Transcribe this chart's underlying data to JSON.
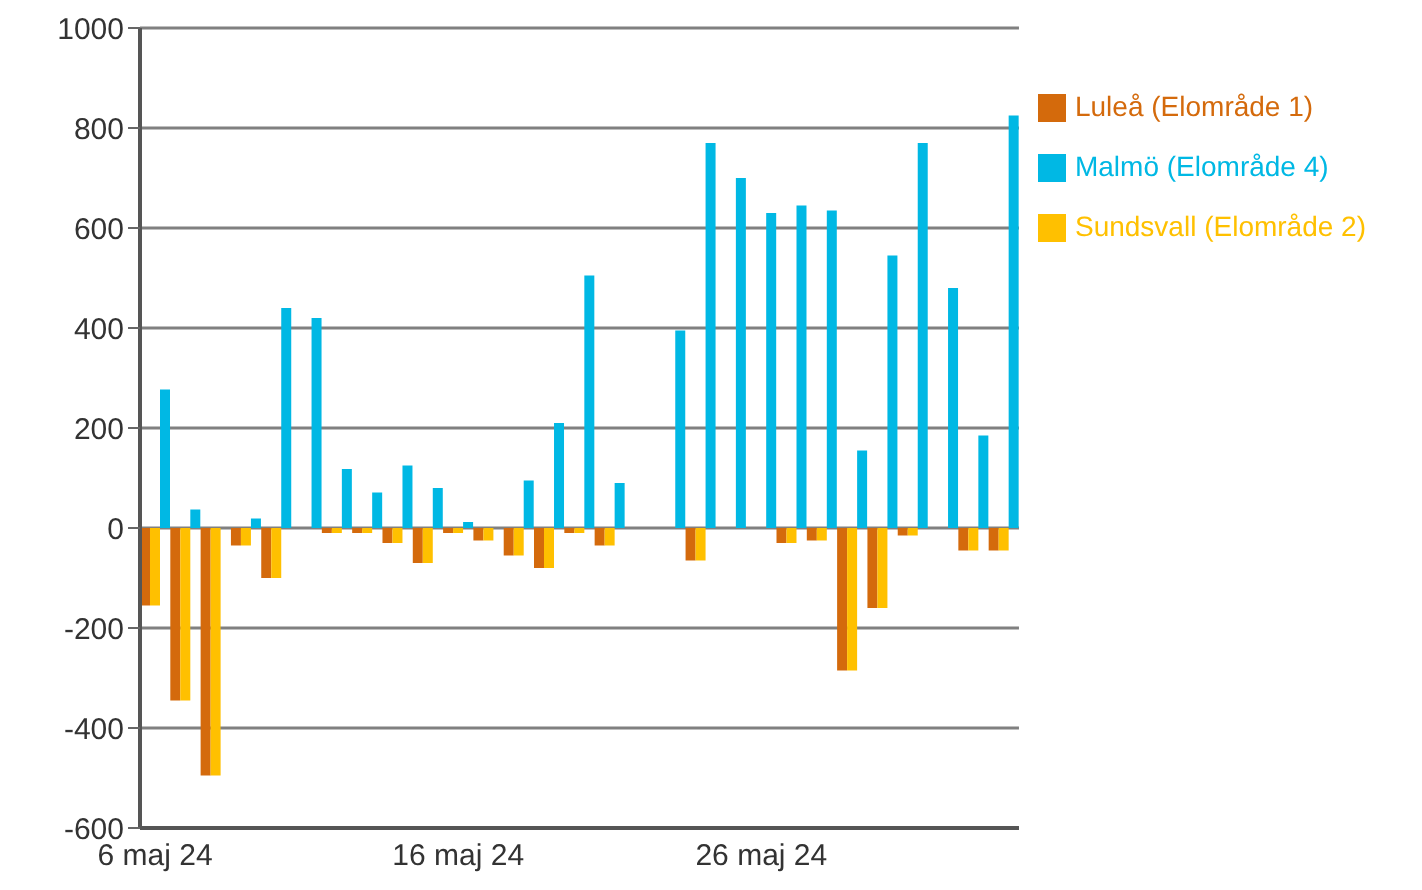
{
  "chart_data": {
    "type": "bar",
    "categories": [
      "6 maj 24",
      null,
      null,
      null,
      null,
      null,
      null,
      null,
      null,
      null,
      "16 maj 24",
      null,
      null,
      null,
      null,
      null,
      null,
      null,
      null,
      null,
      "26 maj 24",
      null,
      null,
      null,
      null,
      null,
      null,
      null,
      null
    ],
    "series": [
      {
        "name": "Luleå (Elområde 1)",
        "color": "#d46a0c",
        "values": [
          -155,
          -345,
          -495,
          -35,
          -100,
          null,
          -10,
          -10,
          -30,
          -70,
          -10,
          -25,
          -55,
          -80,
          -10,
          -35,
          null,
          null,
          -65,
          null,
          null,
          -30,
          -25,
          -285,
          -160,
          -15,
          null,
          -45,
          -45
        ]
      },
      {
        "name": "Sundsvall (Elområde 2)",
        "color": "#ffc000",
        "values": [
          -155,
          -345,
          -495,
          -35,
          -100,
          null,
          -10,
          -10,
          -30,
          -70,
          -10,
          -25,
          -55,
          -80,
          -10,
          -35,
          null,
          null,
          -65,
          null,
          null,
          -30,
          -25,
          -285,
          -160,
          -15,
          null,
          -45,
          -45
        ]
      },
      {
        "name": "Malmö (Elområde 4)",
        "color": "#00b8e4",
        "values": [
          277,
          37,
          null,
          19,
          440,
          420,
          118,
          71,
          125,
          80,
          12,
          null,
          95,
          210,
          505,
          90,
          null,
          395,
          770,
          700,
          630,
          645,
          635,
          155,
          545,
          770,
          480,
          185,
          825
        ]
      }
    ],
    "ylim": [
      -600,
      1000
    ],
    "yticks": [
      -600,
      -400,
      -200,
      0,
      200,
      400,
      600,
      800,
      1000
    ],
    "grid": "y",
    "legend": "right"
  }
}
